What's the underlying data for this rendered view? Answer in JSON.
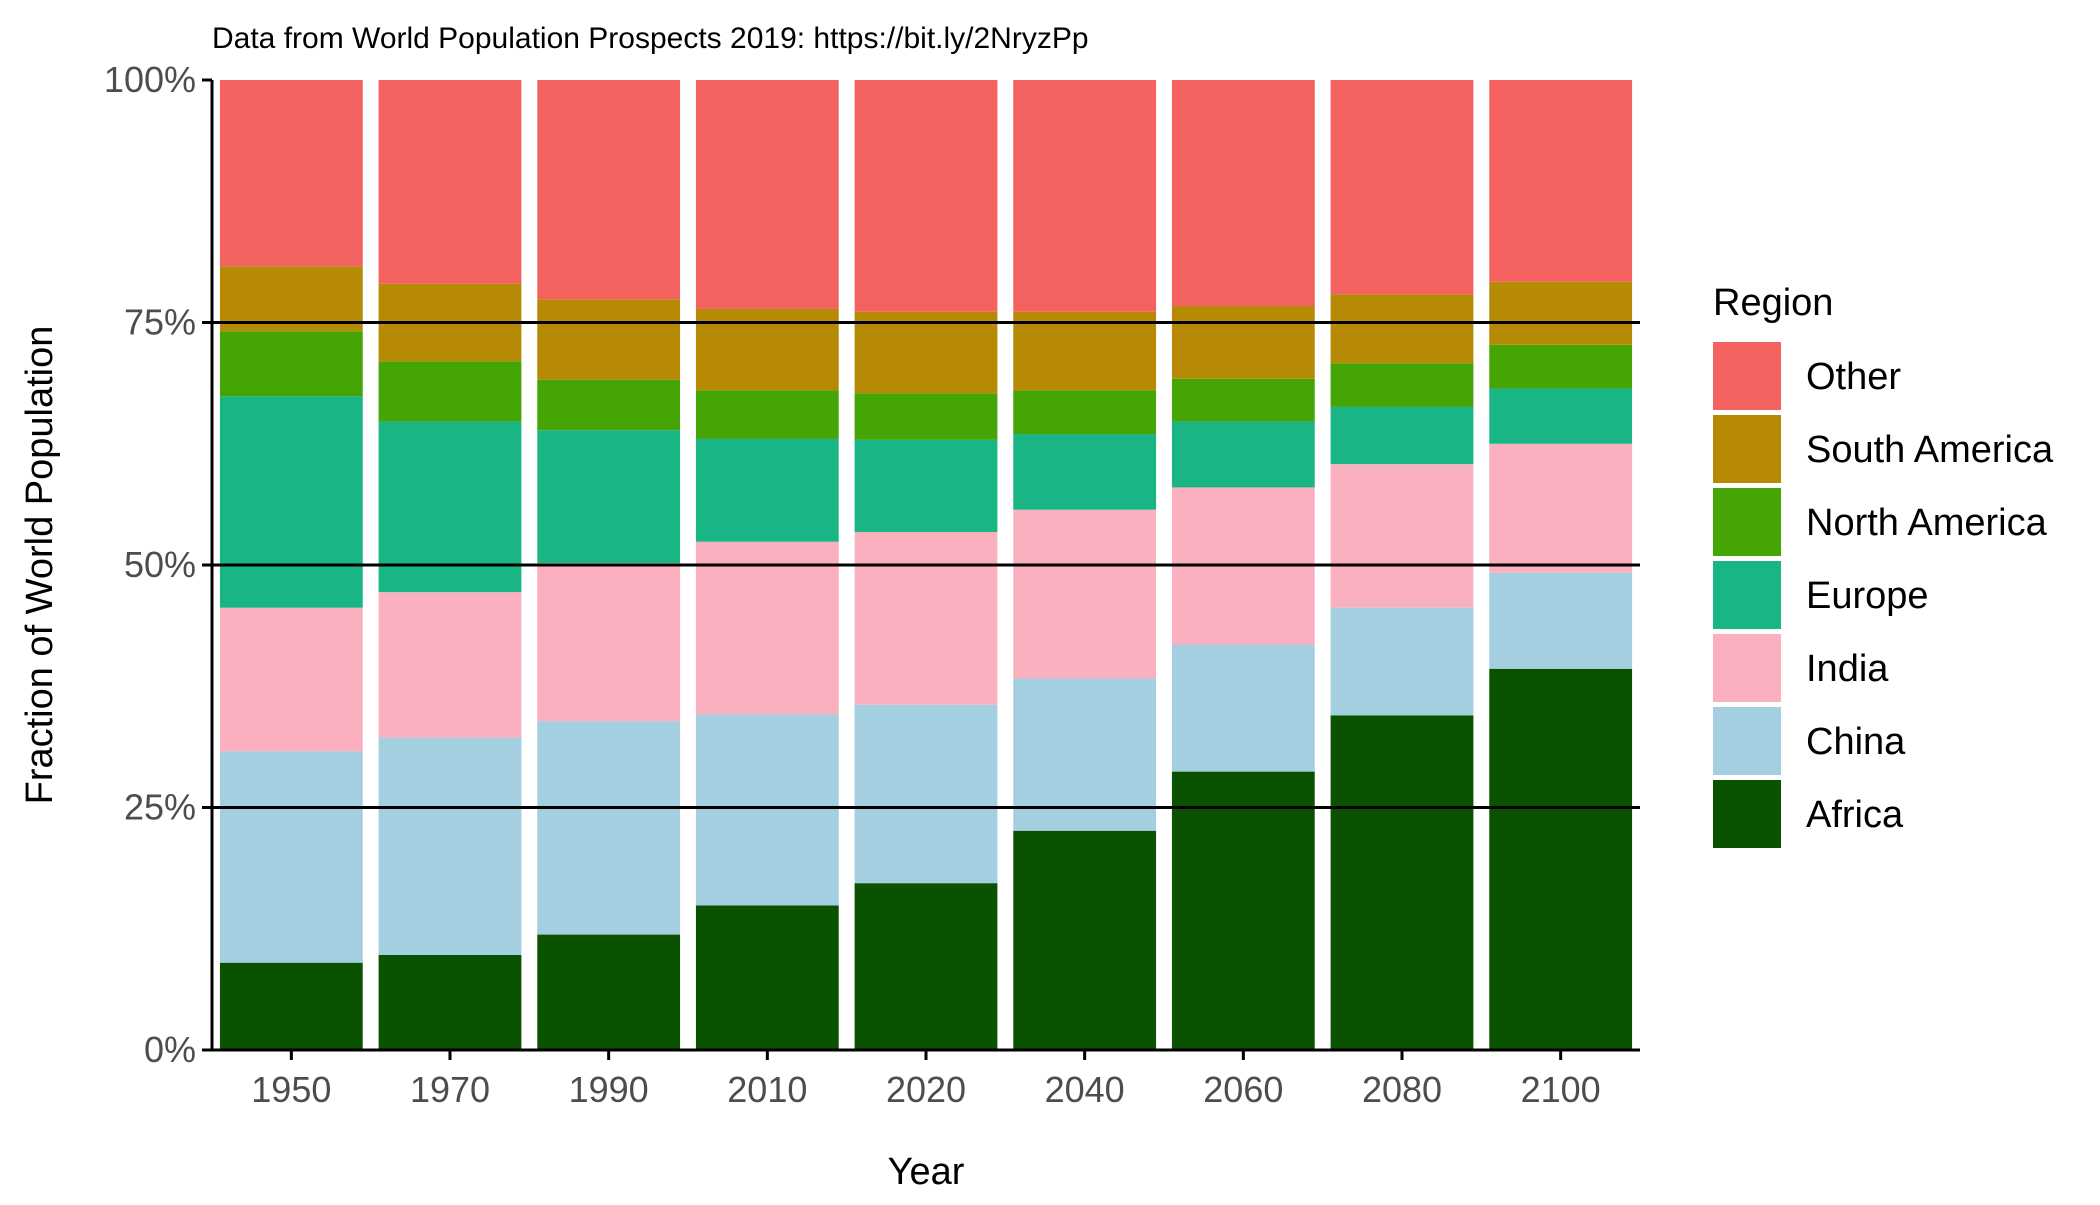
{
  "chart_data": {
    "type": "bar",
    "stacked": true,
    "subtitle": "Data from World Population Prospects 2019: https://bit.ly/2NryzPp",
    "xlabel": "Year",
    "ylabel": "Fraction of World Population",
    "ylim": [
      0,
      1
    ],
    "y_ticks": [
      0,
      0.25,
      0.5,
      0.75,
      1
    ],
    "y_tick_labels": [
      "0%",
      "25%",
      "50%",
      "75%",
      "100%"
    ],
    "horizontal_reference_lines": [
      0.25,
      0.5,
      0.75
    ],
    "grid": false,
    "legend_position": "right",
    "legend_title": "Region",
    "categories": [
      "1950",
      "1970",
      "1990",
      "2010",
      "2020",
      "2040",
      "2060",
      "2080",
      "2100"
    ],
    "series": [
      {
        "name": "Africa",
        "color": "#0b5200",
        "values": [
          0.09,
          0.098,
          0.119,
          0.149,
          0.172,
          0.226,
          0.287,
          0.345,
          0.393
        ]
      },
      {
        "name": "China",
        "color": "#a3cfe1",
        "values": [
          0.218,
          0.224,
          0.22,
          0.197,
          0.184,
          0.157,
          0.131,
          0.111,
          0.099
        ]
      },
      {
        "name": "India",
        "color": "#fbb0c0",
        "values": [
          0.148,
          0.15,
          0.163,
          0.178,
          0.178,
          0.174,
          0.162,
          0.148,
          0.133
        ]
      },
      {
        "name": "Europe",
        "color": "#1ab585",
        "values": [
          0.218,
          0.176,
          0.137,
          0.106,
          0.095,
          0.078,
          0.068,
          0.059,
          0.057
        ]
      },
      {
        "name": "North America",
        "color": "#44a504",
        "values": [
          0.067,
          0.062,
          0.052,
          0.05,
          0.048,
          0.045,
          0.044,
          0.045,
          0.045
        ]
      },
      {
        "name": "South America",
        "color": "#b68a05",
        "values": [
          0.067,
          0.08,
          0.083,
          0.084,
          0.084,
          0.081,
          0.075,
          0.071,
          0.065
        ]
      },
      {
        "name": "Other",
        "color": "#f3625f",
        "values": [
          0.192,
          0.21,
          0.226,
          0.236,
          0.239,
          0.239,
          0.233,
          0.221,
          0.208
        ]
      }
    ]
  }
}
